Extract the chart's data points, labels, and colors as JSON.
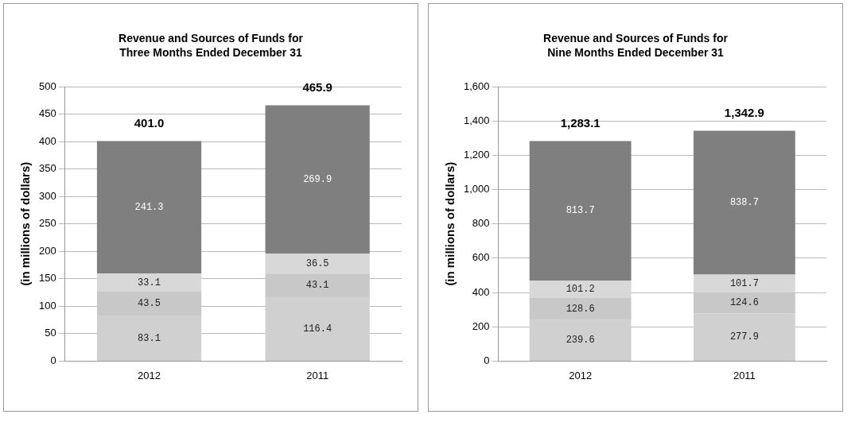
{
  "chart_data": [
    {
      "type": "bar",
      "title": "Revenue and Sources of Funds for Three Months Ended December 31",
      "ylabel": "(in millions of dollars)",
      "categories": [
        "2012",
        "2011"
      ],
      "stacked": true,
      "grid": "y",
      "legend": false,
      "data_labels": true,
      "series": [
        {
          "color": "#d0d0d0",
          "values": [
            83.1,
            116.4
          ]
        },
        {
          "color": "#c8c8c8",
          "values": [
            43.5,
            43.1
          ]
        },
        {
          "color": "#d8d8d8",
          "values": [
            33.1,
            36.5
          ]
        },
        {
          "color": "#7f7f7f",
          "values": [
            241.3,
            269.9
          ]
        }
      ],
      "totals": [
        "401.0",
        "465.9"
      ],
      "ylim": [
        0,
        500
      ],
      "yticks": [
        0,
        50,
        100,
        150,
        200,
        250,
        300,
        350,
        400,
        450,
        500
      ]
    },
    {
      "type": "bar",
      "title": "Revenue and Sources of Funds for Nine Months Ended December 31",
      "ylabel": "(in millions of dollars)",
      "categories": [
        "2012",
        "2011"
      ],
      "stacked": true,
      "grid": "y",
      "legend": false,
      "data_labels": true,
      "series": [
        {
          "color": "#d0d0d0",
          "values": [
            239.6,
            277.9
          ]
        },
        {
          "color": "#c8c8c8",
          "values": [
            128.6,
            124.6
          ]
        },
        {
          "color": "#d8d8d8",
          "values": [
            101.2,
            101.7
          ]
        },
        {
          "color": "#7f7f7f",
          "values": [
            813.7,
            838.7
          ]
        }
      ],
      "totals": [
        "1,283.1",
        "1,342.9"
      ],
      "ylim": [
        0,
        1600
      ],
      "yticks": [
        0,
        200,
        400,
        600,
        800,
        {
          "value": 1000,
          "label": "1,000"
        },
        {
          "value": 1200,
          "label": "1,200"
        },
        {
          "value": 1400,
          "label": "1,400"
        },
        {
          "value": 1600,
          "label": "1,600"
        }
      ]
    }
  ]
}
